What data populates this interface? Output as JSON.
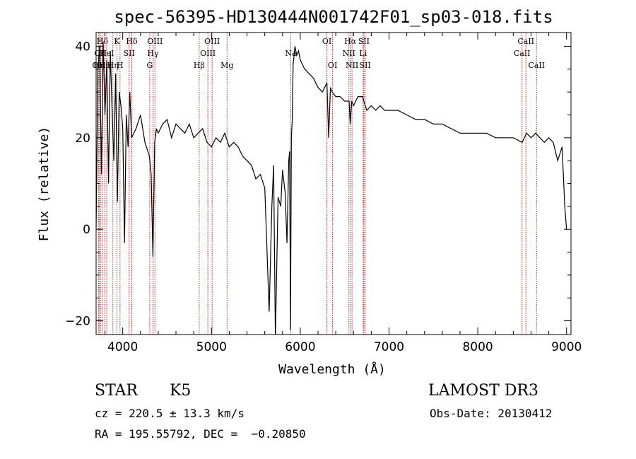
{
  "chart_data": {
    "type": "line",
    "title": "spec-56395-HD130444N001742F01_sp03-018.fits",
    "xlabel": "Wavelength (Å)",
    "ylabel": "Flux (relative)",
    "xlim": [
      3700,
      9050
    ],
    "ylim": [
      -23,
      43
    ],
    "x_ticks": [
      4000,
      5000,
      6000,
      7000,
      8000,
      9000
    ],
    "x_tick_labels": [
      "4000",
      "5000",
      "6000",
      "7000",
      "8000",
      "9000"
    ],
    "y_ticks": [
      -20,
      0,
      20,
      40
    ],
    "y_tick_labels": [
      "−20",
      "0",
      "20",
      "40"
    ],
    "grid": false,
    "line_color": "#000000",
    "marker_color": "#cc2222",
    "series": [
      {
        "x": [
          3700,
          3720,
          3740,
          3760,
          3780,
          3800,
          3820,
          3840,
          3860,
          3880,
          3900,
          3920,
          3940,
          3960,
          3980,
          4000,
          4020,
          4040,
          4060,
          4080,
          4100,
          4150,
          4200,
          4250,
          4300,
          4320,
          4340,
          4360,
          4380,
          4400,
          4450,
          4500,
          4550,
          4600,
          4650,
          4700,
          4750,
          4800,
          4850,
          4900,
          4950,
          5000,
          5050,
          5100,
          5150,
          5200,
          5250,
          5300,
          5350,
          5400,
          5450,
          5500,
          5550,
          5600,
          5650,
          5680,
          5700,
          5720,
          5750,
          5780,
          5800,
          5830,
          5850,
          5870,
          5880,
          5890,
          5900,
          5910,
          5920,
          5940,
          5960,
          5980,
          6000,
          6050,
          6100,
          6150,
          6200,
          6250,
          6300,
          6320,
          6340,
          6360,
          6400,
          6450,
          6500,
          6550,
          6563,
          6580,
          6600,
          6650,
          6700,
          6750,
          6800,
          6850,
          6900,
          6950,
          7000,
          7100,
          7200,
          7300,
          7400,
          7500,
          7600,
          7700,
          7800,
          7900,
          8000,
          8100,
          8200,
          8300,
          8400,
          8500,
          8550,
          8600,
          8650,
          8700,
          8750,
          8800,
          8850,
          8900,
          8950,
          8980,
          9000
        ],
        "y": [
          0,
          35,
          40,
          12,
          41,
          25,
          37,
          10,
          39,
          26,
          15,
          34,
          6,
          30,
          27,
          22,
          -3,
          25,
          18,
          30,
          20,
          22,
          25,
          19,
          16,
          12,
          -6,
          19,
          22,
          21,
          23,
          24,
          20,
          23,
          22,
          21,
          23,
          20,
          21,
          22,
          19,
          18,
          20,
          19,
          21,
          18,
          19,
          18,
          16,
          15,
          14,
          11,
          12,
          9,
          -18,
          5,
          14,
          -24,
          7,
          5,
          13,
          8,
          -3,
          15,
          17,
          -22,
          20,
          24,
          36,
          40,
          38,
          39,
          37,
          35,
          34,
          33,
          31,
          30,
          32,
          20,
          31,
          30,
          29,
          29,
          28,
          28,
          23,
          28,
          27,
          29,
          29,
          26,
          27,
          26,
          27,
          26,
          26,
          26,
          25,
          24,
          24,
          23,
          23,
          22,
          21,
          21,
          21,
          21,
          20,
          20,
          20,
          19,
          21,
          20,
          21,
          20,
          19,
          20,
          19,
          15,
          18,
          5,
          0
        ]
      }
    ],
    "line_markers": [
      {
        "w": 3727,
        "label": "OII",
        "row": 2
      },
      {
        "w": 3734,
        "label": "Hη",
        "row": 2
      },
      {
        "w": 3750,
        "label": "OII",
        "row": 1
      },
      {
        "w": 3771,
        "label": "Hδ",
        "row": 0
      },
      {
        "w": 3798,
        "label": "Hη",
        "row": 2
      },
      {
        "w": 3820,
        "label": "HeI",
        "row": 1
      },
      {
        "w": 3889,
        "label": "Hη",
        "row": 2
      },
      {
        "w": 3934,
        "label": "K",
        "row": 0
      },
      {
        "w": 3969,
        "label": "H",
        "row": 2
      },
      {
        "w": 4072,
        "label": "SII",
        "row": 1
      },
      {
        "w": 4102,
        "label": "Hδ",
        "row": 0
      },
      {
        "w": 4304,
        "label": "G",
        "row": 2
      },
      {
        "w": 4341,
        "label": "Hγ",
        "row": 1
      },
      {
        "w": 4363,
        "label": "OIII",
        "row": 0
      },
      {
        "w": 4861,
        "label": "Hβ",
        "row": 2
      },
      {
        "w": 4959,
        "label": "OIII",
        "row": 1
      },
      {
        "w": 5007,
        "label": "OIII",
        "row": 0
      },
      {
        "w": 5175,
        "label": "Mg",
        "row": 2
      },
      {
        "w": 5893,
        "label": "Na",
        "row": 1
      },
      {
        "w": 6300,
        "label": "OI",
        "row": 0
      },
      {
        "w": 6364,
        "label": "OI",
        "row": 2
      },
      {
        "w": 6548,
        "label": "NII",
        "row": 1
      },
      {
        "w": 6563,
        "label": "Hα",
        "row": 0
      },
      {
        "w": 6583,
        "label": "NII",
        "row": 2
      },
      {
        "w": 6708,
        "label": "Li",
        "row": 1
      },
      {
        "w": 6716,
        "label": "SII",
        "row": 0
      },
      {
        "w": 6731,
        "label": "SII",
        "row": 2
      },
      {
        "w": 8498,
        "label": "CaII",
        "row": 1
      },
      {
        "w": 8542,
        "label": "CaII",
        "row": 0
      },
      {
        "w": 8662,
        "label": "CaII",
        "row": 2
      }
    ]
  },
  "info": {
    "object_class": "STAR",
    "subclass": "K5",
    "survey": "LAMOST DR3",
    "redshift": "cz = 220.5 ± 13.3 km/s",
    "obs_date": "Obs-Date: 20130412",
    "coords": "RA = 195.55792, DEC =  −0.20850"
  }
}
